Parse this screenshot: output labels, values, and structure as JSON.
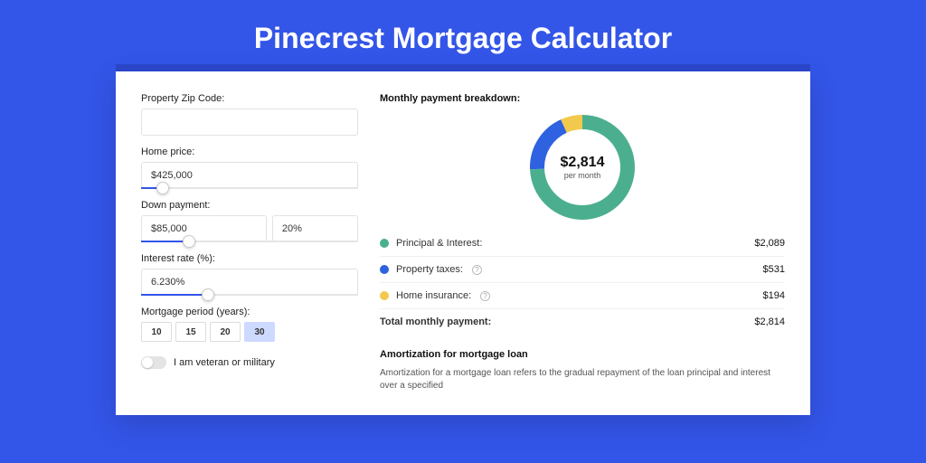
{
  "header": {
    "title": "Pinecrest Mortgage Calculator"
  },
  "form": {
    "zip": {
      "label": "Property Zip Code:",
      "value": ""
    },
    "home_price": {
      "label": "Home price:",
      "value": "$425,000",
      "slider_pct": 10
    },
    "down_payment": {
      "label": "Down payment:",
      "amount": "$85,000",
      "percent": "20%",
      "slider_pct": 22
    },
    "interest_rate": {
      "label": "Interest rate (%):",
      "value": "6.230%",
      "slider_pct": 31
    },
    "mortgage_period": {
      "label": "Mortgage period (years):",
      "options": [
        "10",
        "15",
        "20",
        "30"
      ],
      "selected_index": 3
    },
    "veteran": {
      "label": "I am veteran or military",
      "checked": false
    }
  },
  "breakdown": {
    "title": "Monthly payment breakdown:",
    "donut": {
      "amount": "$2,814",
      "sub": "per month",
      "type": "donut",
      "slices": [
        {
          "label_key": "principal_interest",
          "value": 2089,
          "color": "#4baf8f"
        },
        {
          "label_key": "property_taxes",
          "value": 531,
          "color": "#2e62e0"
        },
        {
          "label_key": "home_insurance",
          "value": 194,
          "color": "#f2c94c"
        }
      ],
      "ring_width": 16,
      "radius": 50,
      "background_color": "#ffffff"
    },
    "rows": [
      {
        "key": "pi",
        "dot_color": "#4baf8f",
        "label": "Principal & Interest:",
        "help": false,
        "value": "$2,089"
      },
      {
        "key": "tax",
        "dot_color": "#2e62e0",
        "label": "Property taxes:",
        "help": true,
        "value": "$531"
      },
      {
        "key": "ins",
        "dot_color": "#f2c94c",
        "label": "Home insurance:",
        "help": true,
        "value": "$194"
      }
    ],
    "total": {
      "label": "Total monthly payment:",
      "value": "$2,814"
    }
  },
  "amortization": {
    "title": "Amortization for mortgage loan",
    "text": "Amortization for a mortgage loan refers to the gradual repayment of the loan principal and interest over a specified"
  },
  "colors": {
    "page_bg": "#3355e8",
    "accent": "#3355e8"
  }
}
